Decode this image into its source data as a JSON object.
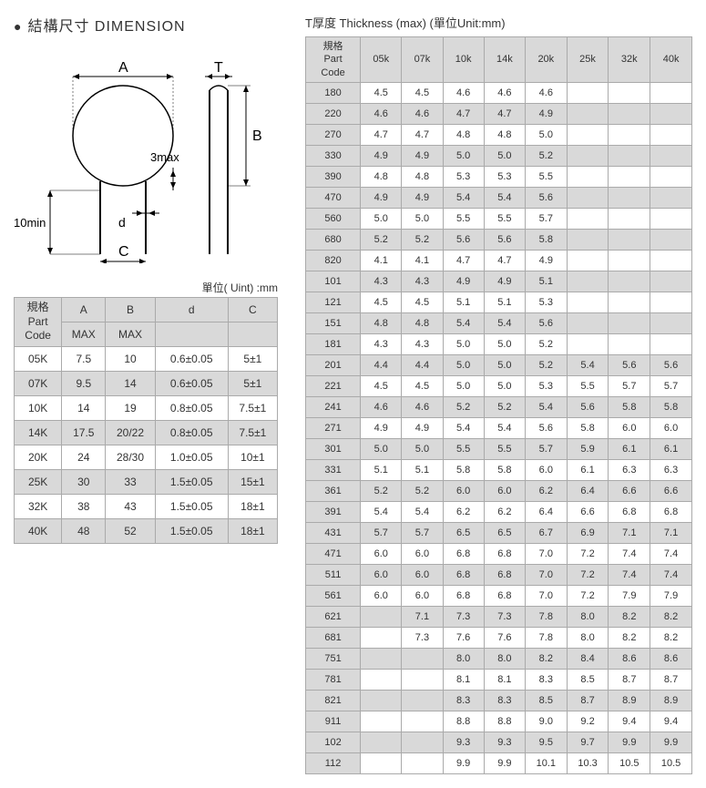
{
  "left": {
    "title": "結構尺寸 DIMENSION",
    "unit_label": "單位( Uint) :mm",
    "diagram_labels": {
      "A": "A",
      "T": "T",
      "B": "B",
      "C": "C",
      "d": "d",
      "three_max": "3max",
      "ten_min": "10min"
    },
    "table": {
      "header1": [
        "規格\nPart\nCode",
        "A",
        "B",
        "d",
        "C"
      ],
      "header2": [
        "",
        "MAX",
        "MAX",
        "",
        ""
      ],
      "rows": [
        {
          "code": "05K",
          "a": "7.5",
          "b": "10",
          "d": "0.6±0.05",
          "c": "5±1",
          "shade": false
        },
        {
          "code": "07K",
          "a": "9.5",
          "b": "14",
          "d": "0.6±0.05",
          "c": "5±1",
          "shade": true
        },
        {
          "code": "10K",
          "a": "14",
          "b": "19",
          "d": "0.8±0.05",
          "c": "7.5±1",
          "shade": false
        },
        {
          "code": "14K",
          "a": "17.5",
          "b": "20/22",
          "d": "0.8±0.05",
          "c": "7.5±1",
          "shade": true
        },
        {
          "code": "20K",
          "a": "24",
          "b": "28/30",
          "d": "1.0±0.05",
          "c": "10±1",
          "shade": false
        },
        {
          "code": "25K",
          "a": "30",
          "b": "33",
          "d": "1.5±0.05",
          "c": "15±1",
          "shade": true
        },
        {
          "code": "32K",
          "a": "38",
          "b": "43",
          "d": "1.5±0.05",
          "c": "18±1",
          "shade": false
        },
        {
          "code": "40K",
          "a": "48",
          "b": "52",
          "d": "1.5±0.05",
          "c": "18±1",
          "shade": true
        }
      ]
    }
  },
  "right": {
    "title": "T厚度 Thickness (max) (單位Unit:mm)",
    "cols": [
      "規格\nPart\nCode",
      "05k",
      "07k",
      "10k",
      "14k",
      "20k",
      "25k",
      "32k",
      "40k"
    ],
    "rows": [
      {
        "c": "180",
        "v": [
          "4.5",
          "4.5",
          "4.6",
          "4.6",
          "4.6",
          "",
          "",
          ""
        ],
        "s": false
      },
      {
        "c": "220",
        "v": [
          "4.6",
          "4.6",
          "4.7",
          "4.7",
          "4.9",
          "",
          "",
          ""
        ],
        "s": true
      },
      {
        "c": "270",
        "v": [
          "4.7",
          "4.7",
          "4.8",
          "4.8",
          "5.0",
          "",
          "",
          ""
        ],
        "s": false
      },
      {
        "c": "330",
        "v": [
          "4.9",
          "4.9",
          "5.0",
          "5.0",
          "5.2",
          "",
          "",
          ""
        ],
        "s": true
      },
      {
        "c": "390",
        "v": [
          "4.8",
          "4.8",
          "5.3",
          "5.3",
          "5.5",
          "",
          "",
          ""
        ],
        "s": false
      },
      {
        "c": "470",
        "v": [
          "4.9",
          "4.9",
          "5.4",
          "5.4",
          "5.6",
          "",
          "",
          ""
        ],
        "s": true
      },
      {
        "c": "560",
        "v": [
          "5.0",
          "5.0",
          "5.5",
          "5.5",
          "5.7",
          "",
          "",
          ""
        ],
        "s": false
      },
      {
        "c": "680",
        "v": [
          "5.2",
          "5.2",
          "5.6",
          "5.6",
          "5.8",
          "",
          "",
          ""
        ],
        "s": true
      },
      {
        "c": "820",
        "v": [
          "4.1",
          "4.1",
          "4.7",
          "4.7",
          "4.9",
          "",
          "",
          ""
        ],
        "s": false
      },
      {
        "c": "101",
        "v": [
          "4.3",
          "4.3",
          "4.9",
          "4.9",
          "5.1",
          "",
          "",
          ""
        ],
        "s": true
      },
      {
        "c": "121",
        "v": [
          "4.5",
          "4.5",
          "5.1",
          "5.1",
          "5.3",
          "",
          "",
          ""
        ],
        "s": false
      },
      {
        "c": "151",
        "v": [
          "4.8",
          "4.8",
          "5.4",
          "5.4",
          "5.6",
          "",
          "",
          ""
        ],
        "s": true
      },
      {
        "c": "181",
        "v": [
          "4.3",
          "4.3",
          "5.0",
          "5.0",
          "5.2",
          "",
          "",
          ""
        ],
        "s": false
      },
      {
        "c": "201",
        "v": [
          "4.4",
          "4.4",
          "5.0",
          "5.0",
          "5.2",
          "5.4",
          "5.6",
          "5.6"
        ],
        "s": true
      },
      {
        "c": "221",
        "v": [
          "4.5",
          "4.5",
          "5.0",
          "5.0",
          "5.3",
          "5.5",
          "5.7",
          "5.7"
        ],
        "s": false
      },
      {
        "c": "241",
        "v": [
          "4.6",
          "4.6",
          "5.2",
          "5.2",
          "5.4",
          "5.6",
          "5.8",
          "5.8"
        ],
        "s": true
      },
      {
        "c": "271",
        "v": [
          "4.9",
          "4.9",
          "5.4",
          "5.4",
          "5.6",
          "5.8",
          "6.0",
          "6.0"
        ],
        "s": false
      },
      {
        "c": "301",
        "v": [
          "5.0",
          "5.0",
          "5.5",
          "5.5",
          "5.7",
          "5.9",
          "6.1",
          "6.1"
        ],
        "s": true
      },
      {
        "c": "331",
        "v": [
          "5.1",
          "5.1",
          "5.8",
          "5.8",
          "6.0",
          "6.1",
          "6.3",
          "6.3"
        ],
        "s": false
      },
      {
        "c": "361",
        "v": [
          "5.2",
          "5.2",
          "6.0",
          "6.0",
          "6.2",
          "6.4",
          "6.6",
          "6.6"
        ],
        "s": true
      },
      {
        "c": "391",
        "v": [
          "5.4",
          "5.4",
          "6.2",
          "6.2",
          "6.4",
          "6.6",
          "6.8",
          "6.8"
        ],
        "s": false
      },
      {
        "c": "431",
        "v": [
          "5.7",
          "5.7",
          "6.5",
          "6.5",
          "6.7",
          "6.9",
          "7.1",
          "7.1"
        ],
        "s": true
      },
      {
        "c": "471",
        "v": [
          "6.0",
          "6.0",
          "6.8",
          "6.8",
          "7.0",
          "7.2",
          "7.4",
          "7.4"
        ],
        "s": false
      },
      {
        "c": "511",
        "v": [
          "6.0",
          "6.0",
          "6.8",
          "6.8",
          "7.0",
          "7.2",
          "7.4",
          "7.4"
        ],
        "s": true
      },
      {
        "c": "561",
        "v": [
          "6.0",
          "6.0",
          "6.8",
          "6.8",
          "7.0",
          "7.2",
          "7.9",
          "7.9"
        ],
        "s": false
      },
      {
        "c": "621",
        "v": [
          "",
          "7.1",
          "7.3",
          "7.3",
          "7.8",
          "8.0",
          "8.2",
          "8.2"
        ],
        "s": true
      },
      {
        "c": "681",
        "v": [
          "",
          "7.3",
          "7.6",
          "7.6",
          "7.8",
          "8.0",
          "8.2",
          "8.2"
        ],
        "s": false
      },
      {
        "c": "751",
        "v": [
          "",
          "",
          "8.0",
          "8.0",
          "8.2",
          "8.4",
          "8.6",
          "8.6"
        ],
        "s": true
      },
      {
        "c": "781",
        "v": [
          "",
          "",
          "8.1",
          "8.1",
          "8.3",
          "8.5",
          "8.7",
          "8.7"
        ],
        "s": false
      },
      {
        "c": "821",
        "v": [
          "",
          "",
          "8.3",
          "8.3",
          "8.5",
          "8.7",
          "8.9",
          "8.9"
        ],
        "s": true
      },
      {
        "c": "911",
        "v": [
          "",
          "",
          "8.8",
          "8.8",
          "9.0",
          "9.2",
          "9.4",
          "9.4"
        ],
        "s": false
      },
      {
        "c": "102",
        "v": [
          "",
          "",
          "9.3",
          "9.3",
          "9.5",
          "9.7",
          "9.9",
          "9.9"
        ],
        "s": true
      },
      {
        "c": "112",
        "v": [
          "",
          "",
          "9.9",
          "9.9",
          "10.1",
          "10.3",
          "10.5",
          "10.5"
        ],
        "s": false
      }
    ]
  }
}
